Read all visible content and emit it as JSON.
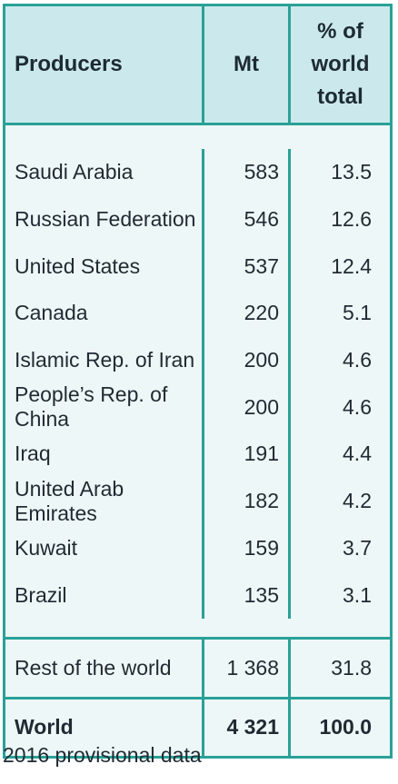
{
  "table": {
    "headers": {
      "producers": "Producers",
      "mt": "Mt",
      "pct_line1": "% of",
      "pct_line2": "world",
      "pct_line3": "total"
    },
    "rows": [
      {
        "name": "Saudi Arabia",
        "mt": "583",
        "pct": "13.5"
      },
      {
        "name": "Russian Federation",
        "mt": "546",
        "pct": "12.6"
      },
      {
        "name": "United States",
        "mt": "537",
        "pct": "12.4"
      },
      {
        "name": "Canada",
        "mt": "220",
        "pct": "5.1"
      },
      {
        "name": "Islamic Rep. of Iran",
        "mt": "200",
        "pct": "4.6"
      },
      {
        "name": "People’s Rep. of China",
        "mt": "200",
        "pct": "4.6"
      },
      {
        "name": "Iraq",
        "mt": "191",
        "pct": "4.4"
      },
      {
        "name": "United Arab Emirates",
        "mt": "182",
        "pct": "4.2"
      },
      {
        "name": "Kuwait",
        "mt": "159",
        "pct": "3.7"
      },
      {
        "name": "Brazil",
        "mt": "135",
        "pct": "3.1"
      }
    ],
    "rest": {
      "name": "Rest of the world",
      "mt": "1 368",
      "pct": "31.8"
    },
    "total": {
      "name": "World",
      "mt": "4 321",
      "pct": "100.0"
    }
  },
  "note": "2016 provisional data",
  "colors": {
    "accent": "#2aa198",
    "header_bg": "#cbe9ec",
    "body_bg": "#eef7f7"
  }
}
